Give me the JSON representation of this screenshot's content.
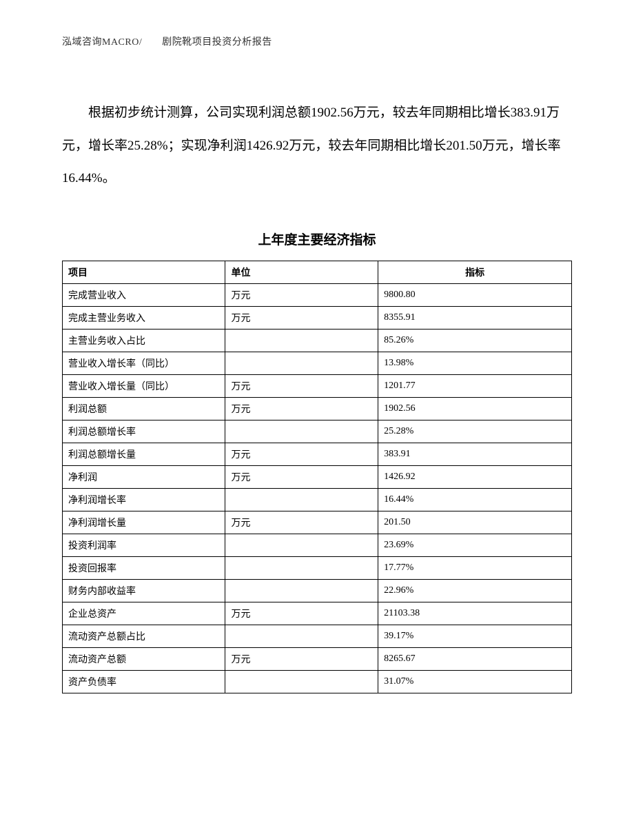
{
  "header": "泓域咨询MACRO/　　剧院靴项目投资分析报告",
  "paragraph": "根据初步统计测算，公司实现利润总额1902.56万元，较去年同期相比增长383.91万元，增长率25.28%；实现净利润1426.92万元，较去年同期相比增长201.50万元，增长率16.44%。",
  "table": {
    "title": "上年度主要经济指标",
    "columns": [
      "项目",
      "单位",
      "指标"
    ],
    "rows": [
      [
        "完成营业收入",
        "万元",
        "9800.80"
      ],
      [
        "完成主营业务收入",
        "万元",
        "8355.91"
      ],
      [
        "主营业务收入占比",
        "",
        "85.26%"
      ],
      [
        "营业收入增长率（同比）",
        "",
        "13.98%"
      ],
      [
        "营业收入增长量（同比）",
        "万元",
        "1201.77"
      ],
      [
        "利润总额",
        "万元",
        "1902.56"
      ],
      [
        "利润总额增长率",
        "",
        "25.28%"
      ],
      [
        "利润总额增长量",
        "万元",
        "383.91"
      ],
      [
        "净利润",
        "万元",
        "1426.92"
      ],
      [
        "净利润增长率",
        "",
        "16.44%"
      ],
      [
        "净利润增长量",
        "万元",
        "201.50"
      ],
      [
        "投资利润率",
        "",
        "23.69%"
      ],
      [
        "投资回报率",
        "",
        "17.77%"
      ],
      [
        "财务内部收益率",
        "",
        "22.96%"
      ],
      [
        "企业总资产",
        "万元",
        "21103.38"
      ],
      [
        "流动资产总额占比",
        "",
        "39.17%"
      ],
      [
        "流动资产总额",
        "万元",
        "8265.67"
      ],
      [
        "资产负债率",
        "",
        "31.07%"
      ]
    ]
  }
}
